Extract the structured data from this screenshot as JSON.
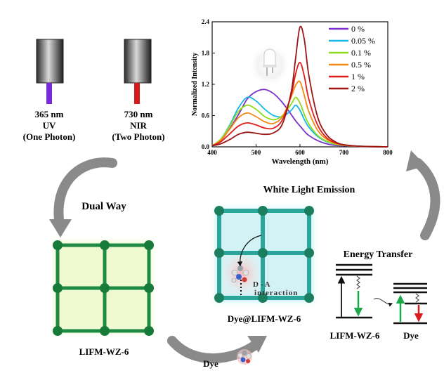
{
  "light_sources": [
    {
      "wavelength": "365 nm",
      "band": "UV",
      "mode": "(One Photon)",
      "beam_color": "#7b2ad8"
    },
    {
      "wavelength": "730 nm",
      "band": "NIR",
      "mode": "(Two Photon)",
      "beam_color": "#d41a1a"
    }
  ],
  "labels": {
    "dual_way": "Dual Way",
    "white_light": "White Light Emission",
    "energy_transfer": "Energy Transfer",
    "mof": "LIFM-WZ-6",
    "composite": "Dye@LIFM-WZ-6",
    "dye": "Dye",
    "da_line1": "D - A",
    "da_line2": "interaction",
    "level_left": "LIFM-WZ-6",
    "level_right": "Dye"
  },
  "chart_data": {
    "type": "line",
    "xlabel": "Wavelength (nm)",
    "ylabel": "Normalized Intensity",
    "xlim": [
      400,
      800
    ],
    "ylim": [
      0.0,
      2.4
    ],
    "xticks": [
      400,
      500,
      600,
      700,
      800
    ],
    "yticks": [
      0.0,
      0.6,
      1.2,
      1.8,
      2.4
    ],
    "x": [
      400,
      420,
      440,
      460,
      480,
      500,
      520,
      540,
      560,
      580,
      590,
      600,
      610,
      620,
      640,
      660,
      680,
      700,
      740,
      800
    ],
    "series": [
      {
        "name": "0 %",
        "color": "#7b2fc9",
        "values": [
          0.02,
          0.12,
          0.35,
          0.62,
          0.92,
          1.06,
          1.1,
          1.02,
          0.85,
          0.62,
          0.5,
          0.4,
          0.3,
          0.22,
          0.12,
          0.06,
          0.03,
          0.02,
          0.01,
          0.0
        ]
      },
      {
        "name": "0.05 %",
        "color": "#17b8e8",
        "values": [
          0.02,
          0.15,
          0.42,
          0.75,
          0.95,
          0.88,
          0.72,
          0.6,
          0.58,
          0.7,
          0.8,
          0.7,
          0.52,
          0.38,
          0.2,
          0.1,
          0.05,
          0.03,
          0.01,
          0.0
        ]
      },
      {
        "name": "0.1 %",
        "color": "#8edc1a",
        "values": [
          0.02,
          0.15,
          0.4,
          0.68,
          0.8,
          0.72,
          0.58,
          0.52,
          0.6,
          0.82,
          0.95,
          0.84,
          0.62,
          0.44,
          0.22,
          0.11,
          0.05,
          0.03,
          0.01,
          0.0
        ]
      },
      {
        "name": "0.5 %",
        "color": "#f28a12",
        "values": [
          0.02,
          0.13,
          0.34,
          0.56,
          0.65,
          0.58,
          0.48,
          0.45,
          0.58,
          0.96,
          1.18,
          1.25,
          0.98,
          0.68,
          0.32,
          0.15,
          0.07,
          0.03,
          0.01,
          0.0
        ]
      },
      {
        "name": "1 %",
        "color": "#e01c1c",
        "values": [
          0.02,
          0.1,
          0.25,
          0.4,
          0.46,
          0.42,
          0.36,
          0.36,
          0.52,
          1.0,
          1.4,
          1.62,
          1.35,
          0.92,
          0.42,
          0.18,
          0.08,
          0.04,
          0.01,
          0.0
        ]
      },
      {
        "name": "2 %",
        "color": "#9b1515",
        "values": [
          0.02,
          0.06,
          0.14,
          0.24,
          0.28,
          0.26,
          0.24,
          0.27,
          0.44,
          1.05,
          1.7,
          2.3,
          2.05,
          1.38,
          0.58,
          0.24,
          0.1,
          0.04,
          0.01,
          0.0
        ]
      }
    ],
    "legend": "top-right"
  }
}
